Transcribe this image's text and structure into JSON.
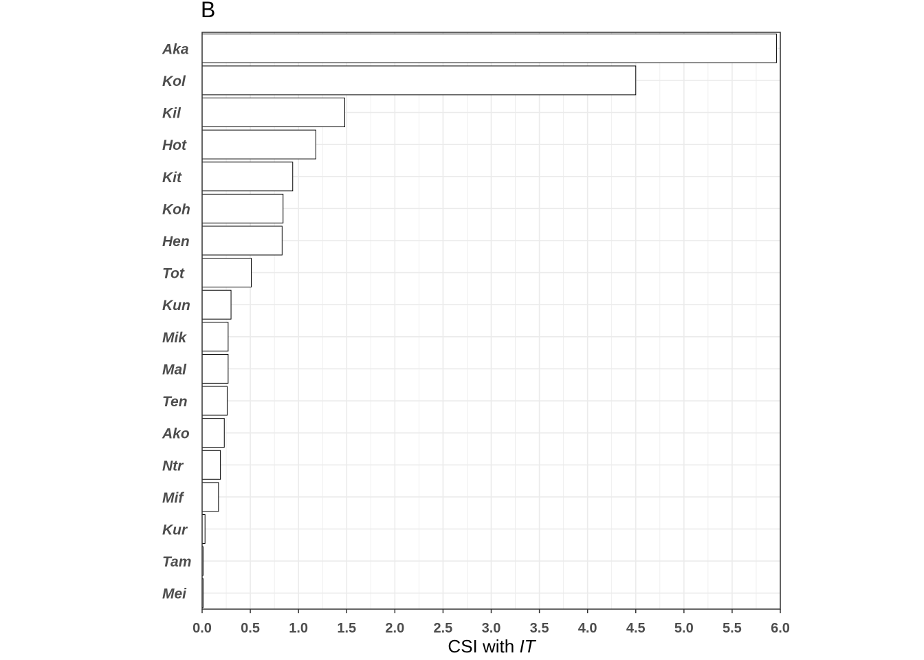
{
  "panel_label": "B",
  "chart_data": {
    "type": "bar",
    "orientation": "horizontal",
    "categories": [
      "Aka",
      "Kol",
      "Kil",
      "Hot",
      "Kit",
      "Koh",
      "Hen",
      "Tot",
      "Kun",
      "Mik",
      "Mal",
      "Ten",
      "Ako",
      "Ntr",
      "Mif",
      "Kur",
      "Tam",
      "Mei"
    ],
    "values": [
      5.96,
      4.5,
      1.48,
      1.18,
      0.94,
      0.84,
      0.83,
      0.51,
      0.3,
      0.27,
      0.27,
      0.26,
      0.23,
      0.19,
      0.17,
      0.03,
      0.01,
      0.01
    ],
    "xlabel_prefix": "CSI with ",
    "xlabel_italic": "IT",
    "xlim": [
      0,
      6.0
    ],
    "xticks": [
      "0.0",
      "0.5",
      "1.0",
      "1.5",
      "2.0",
      "2.5",
      "3.0",
      "3.5",
      "4.0",
      "4.5",
      "5.0",
      "5.5",
      "6.0"
    ],
    "grid": true,
    "bar_fill": "#ffffff",
    "bar_stroke": "#000000",
    "grid_color": "#ebebeb"
  }
}
